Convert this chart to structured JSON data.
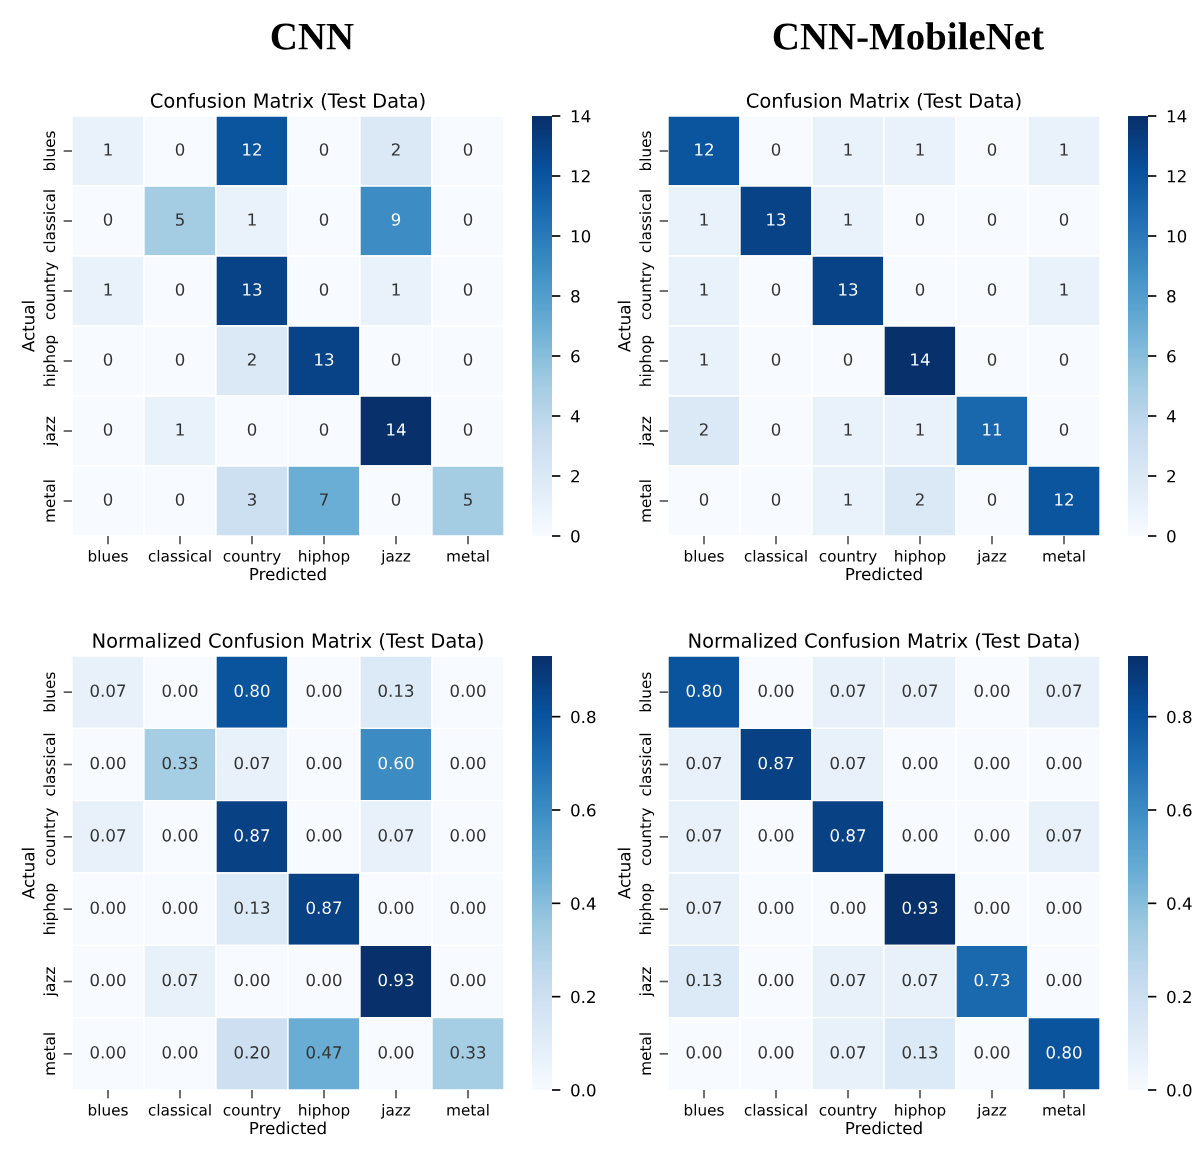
{
  "chart_data": [
    {
      "type": "heatmap",
      "subtitle": "CNN",
      "title": "Confusion Matrix (Test Data)",
      "xlabel": "Predicted",
      "ylabel": "Actual",
      "categories": [
        "blues",
        "classical",
        "country",
        "hiphop",
        "jazz",
        "metal"
      ],
      "y_categories": [
        "blues",
        "classical",
        "country",
        "hiphop",
        "jazz",
        "metal"
      ],
      "cells": [
        [
          1,
          0,
          12,
          0,
          2,
          0
        ],
        [
          0,
          5,
          1,
          0,
          9,
          0
        ],
        [
          1,
          0,
          13,
          0,
          1,
          0
        ],
        [
          0,
          0,
          2,
          13,
          0,
          0
        ],
        [
          0,
          1,
          0,
          0,
          14,
          0
        ],
        [
          0,
          0,
          3,
          7,
          0,
          5
        ]
      ],
      "data_labels": true,
      "clim": [
        0,
        14
      ],
      "cticks": [
        0,
        2,
        4,
        6,
        8,
        10,
        12,
        14
      ]
    },
    {
      "type": "heatmap",
      "subtitle": "CNN-MobileNet",
      "title": "Confusion Matrix (Test Data)",
      "xlabel": "Predicted",
      "ylabel": "Actual",
      "categories": [
        "blues",
        "classical",
        "country",
        "hiphop",
        "jazz",
        "metal"
      ],
      "y_categories": [
        "blues",
        "classical",
        "country",
        "hiphop",
        "jazz",
        "metal"
      ],
      "cells": [
        [
          12,
          0,
          1,
          1,
          0,
          1
        ],
        [
          1,
          13,
          1,
          0,
          0,
          0
        ],
        [
          1,
          0,
          13,
          0,
          0,
          1
        ],
        [
          1,
          0,
          0,
          14,
          0,
          0
        ],
        [
          2,
          0,
          1,
          1,
          11,
          0
        ],
        [
          0,
          0,
          1,
          2,
          0,
          12
        ]
      ],
      "data_labels": true,
      "clim": [
        0,
        14
      ],
      "cticks": [
        0,
        2,
        4,
        6,
        8,
        10,
        12,
        14
      ]
    },
    {
      "type": "heatmap",
      "title": "Normalized Confusion Matrix (Test Data)",
      "xlabel": "Predicted",
      "ylabel": "Actual",
      "categories": [
        "blues",
        "classical",
        "country",
        "hiphop",
        "jazz",
        "metal"
      ],
      "y_categories": [
        "blues",
        "classical",
        "country",
        "hiphop",
        "jazz",
        "metal"
      ],
      "cells": [
        [
          0.07,
          0,
          0.8,
          0,
          0.13,
          0
        ],
        [
          0,
          0.33,
          0.07,
          0,
          0.6,
          0
        ],
        [
          0.07,
          0,
          0.87,
          0,
          0.07,
          0
        ],
        [
          0,
          0,
          0.13,
          0.87,
          0,
          0
        ],
        [
          0,
          0.07,
          0,
          0,
          0.93,
          0
        ],
        [
          0,
          0,
          0.2,
          0.47,
          0,
          0.33
        ]
      ],
      "cell_labels": [
        [
          "0.07",
          "0.00",
          "0.80",
          "0.00",
          "0.13",
          "0.00"
        ],
        [
          "0.00",
          "0.33",
          "0.07",
          "0.00",
          "0.60",
          "0.00"
        ],
        [
          "0.07",
          "0.00",
          "0.87",
          "0.00",
          "0.07",
          "0.00"
        ],
        [
          "0.00",
          "0.00",
          "0.13",
          "0.87",
          "0.00",
          "0.00"
        ],
        [
          "0.00",
          "0.07",
          "0.00",
          "0.00",
          "0.93",
          "0.00"
        ],
        [
          "0.00",
          "0.00",
          "0.20",
          "0.47",
          "0.00",
          "0.33"
        ]
      ],
      "clim": [
        0,
        0.93
      ],
      "cticks": [
        {
          "value": 0,
          "label": "0.0"
        },
        {
          "value": 0.2,
          "label": "0.2"
        },
        {
          "value": 0.4,
          "label": "0.4"
        },
        {
          "value": 0.6,
          "label": "0.6"
        },
        {
          "value": 0.8,
          "label": "0.8"
        }
      ]
    },
    {
      "type": "heatmap",
      "title": "Normalized Confusion Matrix (Test Data)",
      "xlabel": "Predicted",
      "ylabel": "Actual",
      "categories": [
        "blues",
        "classical",
        "country",
        "hiphop",
        "jazz",
        "metal"
      ],
      "y_categories": [
        "blues",
        "classical",
        "country",
        "hiphop",
        "jazz",
        "metal"
      ],
      "cells": [
        [
          0.8,
          0,
          0.07,
          0.07,
          0,
          0.07
        ],
        [
          0.07,
          0.87,
          0.07,
          0,
          0,
          0
        ],
        [
          0.07,
          0,
          0.87,
          0,
          0,
          0.07
        ],
        [
          0.07,
          0,
          0,
          0.93,
          0,
          0
        ],
        [
          0.13,
          0,
          0.07,
          0.07,
          0.73,
          0
        ],
        [
          0,
          0,
          0.07,
          0.13,
          0,
          0.8
        ]
      ],
      "cell_labels": [
        [
          "0.80",
          "0.00",
          "0.07",
          "0.07",
          "0.00",
          "0.07"
        ],
        [
          "0.07",
          "0.87",
          "0.07",
          "0.00",
          "0.00",
          "0.00"
        ],
        [
          "0.07",
          "0.00",
          "0.87",
          "0.00",
          "0.00",
          "0.07"
        ],
        [
          "0.07",
          "0.00",
          "0.00",
          "0.93",
          "0.00",
          "0.00"
        ],
        [
          "0.13",
          "0.00",
          "0.07",
          "0.07",
          "0.73",
          "0.00"
        ],
        [
          "0.00",
          "0.00",
          "0.07",
          "0.13",
          "0.00",
          "0.80"
        ]
      ],
      "clim": [
        0,
        0.93
      ],
      "cticks": [
        {
          "value": 0,
          "label": "0.0"
        },
        {
          "value": 0.2,
          "label": "0.2"
        },
        {
          "value": 0.4,
          "label": "0.4"
        },
        {
          "value": 0.6,
          "label": "0.6"
        },
        {
          "value": 0.8,
          "label": "0.8"
        }
      ]
    }
  ]
}
